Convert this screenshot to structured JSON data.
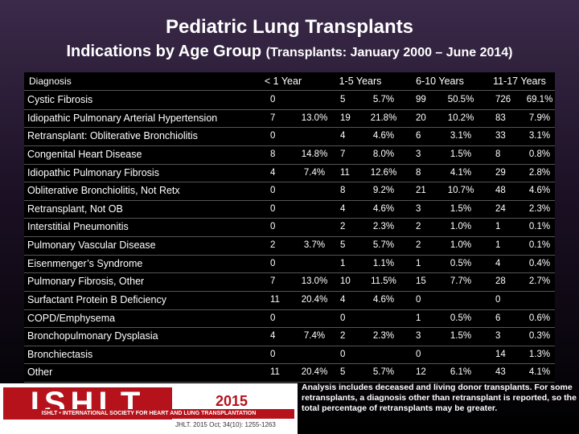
{
  "title": "Pediatric Lung Transplants",
  "subtitle": {
    "main": "Indications by Age Group",
    "detail": "(Transplants: January 2000 – June 2014)"
  },
  "table": {
    "header": [
      "Diagnosis",
      "< 1 Year",
      "1-5 Years",
      "6-10 Years",
      "11-17 Years"
    ],
    "rows": [
      [
        "Cystic Fibrosis",
        0,
        null,
        5,
        "5.7%",
        99,
        "50.5%",
        726,
        "69.1%"
      ],
      [
        "Idiopathic Pulmonary Arterial Hypertension",
        7,
        "13.0%",
        19,
        "21.8%",
        20,
        "10.2%",
        83,
        "7.9%"
      ],
      [
        "Retransplant: Obliterative Bronchiolitis",
        0,
        null,
        4,
        "4.6%",
        6,
        "3.1%",
        33,
        "3.1%"
      ],
      [
        "Congenital Heart Disease",
        8,
        "14.8%",
        7,
        "8.0%",
        3,
        "1.5%",
        8,
        "0.8%"
      ],
      [
        "Idiopathic Pulmonary Fibrosis",
        4,
        "7.4%",
        11,
        "12.6%",
        8,
        "4.1%",
        29,
        "2.8%"
      ],
      [
        "Obliterative Bronchiolitis, Not Retx",
        0,
        null,
        8,
        "9.2%",
        21,
        "10.7%",
        48,
        "4.6%"
      ],
      [
        "Retransplant, Not OB",
        0,
        null,
        4,
        "4.6%",
        3,
        "1.5%",
        24,
        "2.3%"
      ],
      [
        "Interstitial Pneumonitis",
        0,
        null,
        2,
        "2.3%",
        2,
        "1.0%",
        1,
        "0.1%"
      ],
      [
        "Pulmonary Vascular Disease",
        2,
        "3.7%",
        5,
        "5.7%",
        2,
        "1.0%",
        1,
        "0.1%"
      ],
      [
        "Eisenmenger’s Syndrome",
        0,
        null,
        1,
        "1.1%",
        1,
        "0.5%",
        4,
        "0.4%"
      ],
      [
        "Pulmonary Fibrosis, Other",
        7,
        "13.0%",
        10,
        "11.5%",
        15,
        "7.7%",
        28,
        "2.7%"
      ],
      [
        "Surfactant Protein B Deficiency",
        11,
        "20.4%",
        4,
        "4.6%",
        0,
        null,
        0,
        null
      ],
      [
        "COPD/Emphysema",
        0,
        null,
        0,
        null,
        1,
        "0.5%",
        6,
        "0.6%"
      ],
      [
        "Bronchopulmonary Dysplasia",
        4,
        "7.4%",
        2,
        "2.3%",
        3,
        "1.5%",
        3,
        "0.3%"
      ],
      [
        "Bronchiectasis",
        0,
        null,
        0,
        null,
        0,
        null,
        14,
        "1.3%"
      ],
      [
        "Other",
        11,
        "20.4%",
        5,
        "5.7%",
        12,
        "6.1%",
        43,
        "4.1%"
      ]
    ]
  },
  "footer": {
    "logo": "ISHLT",
    "society": "ISHLT • INTERNATIONAL SOCIETY FOR HEART AND LUNG TRANSPLANTATION",
    "year": "2015",
    "citation": "JHLT. 2015 Oct; 34(10): 1255-1263",
    "note": "Analysis includes deceased and living donor transplants. For some retransplants, a diagnosis other than retransplant is reported, so the total percentage of retransplants may be greater."
  }
}
